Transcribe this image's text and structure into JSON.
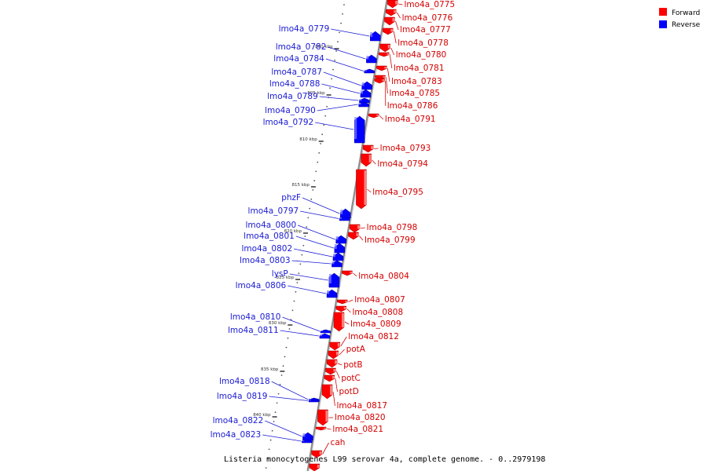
{
  "caption": "Listeria monocytogenes L99 serovar 4a, complete genome. - 0..2979198",
  "legend": [
    {
      "label": "Forward",
      "color": "#ff0000"
    },
    {
      "label": "Reverse",
      "color": "#0000ff"
    }
  ],
  "colors": {
    "forward": "#ff0000",
    "reverse": "#0000ff",
    "backbone": "#888888",
    "forward_label": "#d40000",
    "reverse_label": "#1a1ad4"
  },
  "ticks": [
    "800 kbp",
    "805 kbp",
    "810 kbp",
    "815 kbp",
    "820 kbp",
    "825 kbp",
    "830 kbp",
    "835 kbp",
    "840 kbp"
  ],
  "forward_genes": [
    "lmo4a_0775",
    "lmo4a_0776",
    "lmo4a_0777",
    "lmo4a_0778",
    "lmo4a_0780",
    "lmo4a_0781",
    "lmo4a_0783",
    "lmo4a_0785",
    "lmo4a_0786",
    "lmo4a_0791",
    "lmo4a_0793",
    "lmo4a_0794",
    "lmo4a_0795",
    "lmo4a_0798",
    "lmo4a_0799",
    "lmo4a_0804",
    "lmo4a_0807",
    "lmo4a_0808",
    "lmo4a_0809",
    "lmo4a_0812",
    "potA",
    "potB",
    "potC",
    "potD",
    "lmo4a_0817",
    "lmo4a_0820",
    "lmo4a_0821",
    "cah"
  ],
  "reverse_genes": [
    "lmo4a_0779",
    "lmo4a_0782",
    "lmo4a_0784",
    "lmo4a_0787",
    "lmo4a_0788",
    "lmo4a_0789",
    "lmo4a_0790",
    "lmo4a_0792",
    "phzF",
    "lmo4a_0797",
    "lmo4a_0800",
    "lmo4a_0801",
    "lmo4a_0802",
    "lmo4a_0803",
    "lysP",
    "lmo4a_0806",
    "lmo4a_0810",
    "lmo4a_0811",
    "lmo4a_0818",
    "lmo4a_0819",
    "lmo4a_0822",
    "lmo4a_0823"
  ]
}
